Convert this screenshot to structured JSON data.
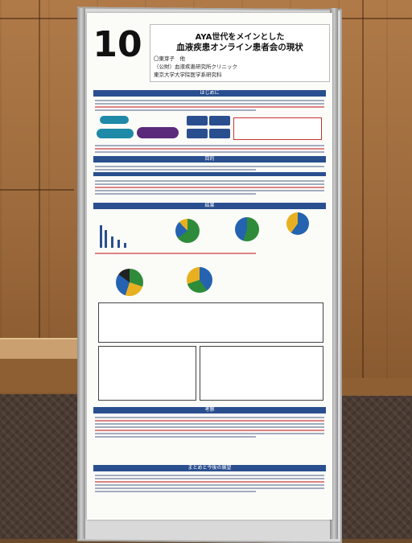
{
  "poster": {
    "number": "10",
    "title_line1": "AYA世代をメインとした",
    "title_line2": "血液疾患オンライン患者会の現状",
    "authors": [
      "〇東芽子　他",
      "（公財）血液疾患研究所クリニック",
      "東京大学大学院医学系研究科"
    ],
    "sections": {
      "intro": "はじめに",
      "purpose": "目的",
      "results": "結果",
      "discussion": "考察",
      "conclusion": "まとめと今後の展望"
    }
  },
  "colors": {
    "accent_blue": "#2a4f8f",
    "pie_green": "#2e8b3a",
    "pie_blue": "#2563b0",
    "pie_yellow": "#e8b020"
  }
}
